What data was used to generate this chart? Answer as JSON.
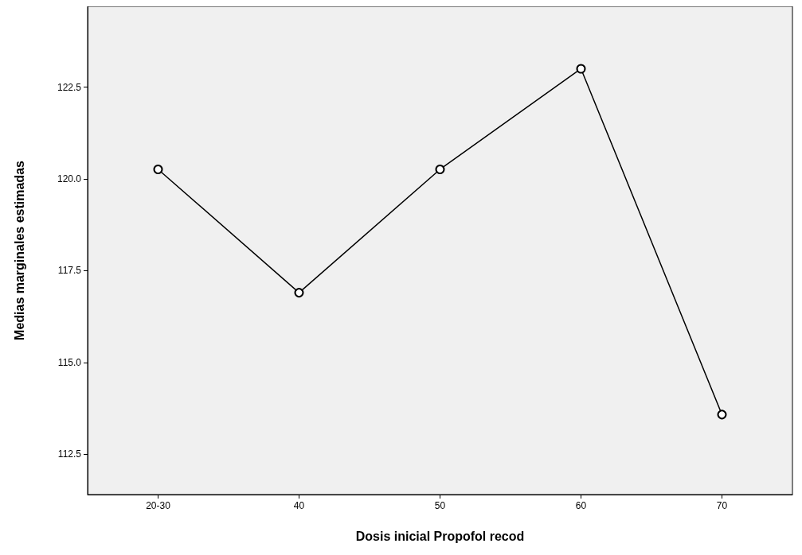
{
  "chart_data": {
    "type": "line",
    "xlabel": "Dosis inicial Propofol recod",
    "ylabel": "Medias marginales estimadas",
    "categories": [
      "20-30",
      "40",
      "50",
      "60",
      "70"
    ],
    "series": [
      {
        "color": "#000000",
        "values": [
          120.26,
          116.9,
          120.26,
          123.0,
          113.58
        ]
      }
    ],
    "ylim": [
      111.4,
      124.7
    ],
    "yticks": [
      112.5,
      {
        "value": 115,
        "label": "115.0"
      },
      117.5,
      {
        "value": 120,
        "label": "120.0"
      },
      122.5
    ],
    "marker": "circle",
    "line_style": "solid"
  }
}
